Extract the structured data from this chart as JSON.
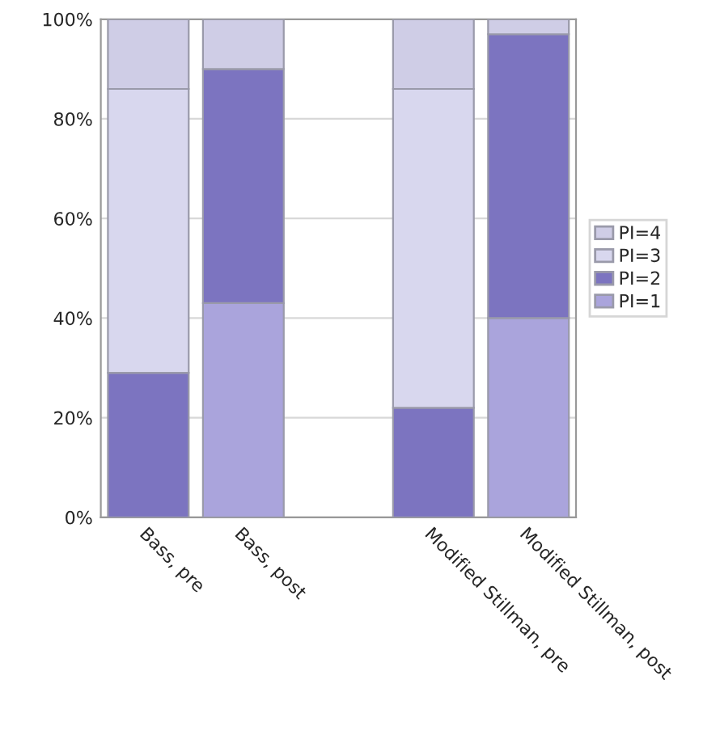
{
  "chart_data": {
    "type": "bar",
    "stacked": true,
    "categories": [
      "Bass, pre",
      "Bass, post",
      null,
      "Modified Stillman, pre",
      "Modified Stillman, post"
    ],
    "series": [
      {
        "name": "PI=1",
        "color": "#aaa4dc",
        "values": [
          0,
          43,
          null,
          0,
          40
        ]
      },
      {
        "name": "PI=2",
        "color": "#7c74c0",
        "values": [
          29,
          47,
          null,
          22,
          57
        ]
      },
      {
        "name": "PI=3",
        "color": "#d8d7ee",
        "values": [
          57,
          0,
          null,
          64,
          0
        ]
      },
      {
        "name": "PI=4",
        "color": "#cfcde6",
        "values": [
          14,
          10,
          null,
          14,
          3
        ]
      }
    ],
    "ylim": [
      0,
      100
    ],
    "yticks": [
      {
        "value": 0,
        "label": "0%"
      },
      {
        "value": 20,
        "label": "20%"
      },
      {
        "value": 40,
        "label": "40%"
      },
      {
        "value": 60,
        "label": "60%"
      },
      {
        "value": 80,
        "label": "80%"
      },
      {
        "value": 100,
        "label": "100%"
      }
    ],
    "grid": "y",
    "legend": "right"
  }
}
